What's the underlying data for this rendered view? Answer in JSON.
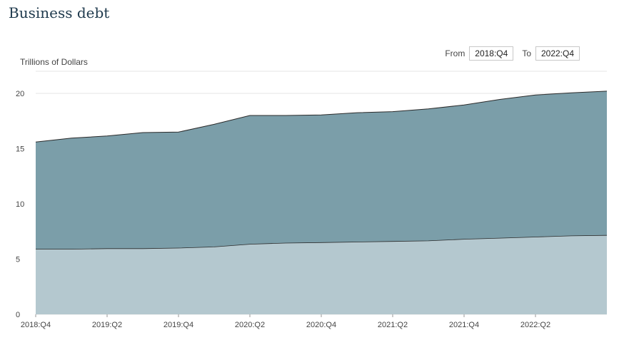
{
  "header": {
    "title": "Business debt"
  },
  "controls": {
    "from_label": "From",
    "from_value": "2018:Q4",
    "to_label": "To",
    "to_value": "2022:Q4"
  },
  "colors": {
    "upper": "#7b9ea9",
    "lower": "#b4c8cf",
    "line": "#2b2b2b",
    "grid": "#e6e6e6"
  },
  "chart_data": {
    "type": "area",
    "stacked": true,
    "ylabel": "Trillions of Dollars",
    "ylim": [
      0,
      22
    ],
    "yticks": [
      0,
      5,
      10,
      15,
      20
    ],
    "x": [
      "2018:Q4",
      "2019:Q1",
      "2019:Q2",
      "2019:Q3",
      "2019:Q4",
      "2020:Q1",
      "2020:Q2",
      "2020:Q3",
      "2020:Q4",
      "2021:Q1",
      "2021:Q2",
      "2021:Q3",
      "2021:Q4",
      "2022:Q1",
      "2022:Q2",
      "2022:Q3",
      "2022:Q4"
    ],
    "xtick_labels": [
      "2018:Q4",
      "2019:Q2",
      "2019:Q4",
      "2020:Q2",
      "2020:Q4",
      "2021:Q2",
      "2021:Q4",
      "2022:Q2"
    ],
    "series": [
      {
        "values": [
          5.9,
          5.9,
          5.95,
          5.95,
          6.0,
          6.1,
          6.35,
          6.45,
          6.5,
          6.55,
          6.6,
          6.65,
          6.8,
          6.9,
          7.0,
          7.1,
          7.15
        ]
      },
      {
        "values": [
          9.7,
          10.05,
          10.2,
          10.5,
          10.5,
          11.1,
          11.65,
          11.55,
          11.55,
          11.7,
          11.75,
          11.95,
          12.15,
          12.55,
          12.85,
          12.95,
          13.05
        ]
      }
    ],
    "grid": true,
    "legend": "none"
  }
}
